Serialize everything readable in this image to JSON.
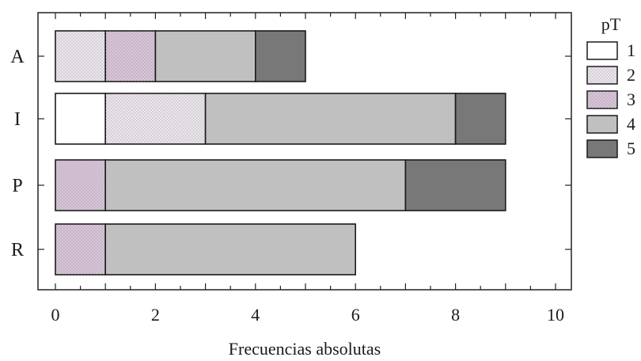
{
  "chart_data": {
    "type": "bar",
    "orientation": "horizontal",
    "stacked": true,
    "categories": [
      "A",
      "I",
      "P",
      "R"
    ],
    "xlabel": "Frecuencias absolutas",
    "ylabel": "",
    "xlim": [
      0,
      10
    ],
    "xticks": [
      0,
      2,
      4,
      6,
      8,
      10
    ],
    "grid": false,
    "legend_title": "pT",
    "legend_position": "right",
    "series": [
      {
        "name": "1",
        "color": "#ffffff",
        "pattern": "none",
        "values": [
          0,
          1,
          0,
          0
        ]
      },
      {
        "name": "2",
        "color": "#ebe6ec",
        "pattern": "dots",
        "values": [
          1,
          2,
          0,
          0
        ]
      },
      {
        "name": "3",
        "color": "#d8c6d8",
        "pattern": "dots",
        "values": [
          1,
          0,
          1,
          1
        ]
      },
      {
        "name": "4",
        "color": "#c0c0c0",
        "pattern": "none",
        "values": [
          2,
          5,
          6,
          5
        ]
      },
      {
        "name": "5",
        "color": "#787878",
        "pattern": "none",
        "values": [
          1,
          1,
          2,
          0
        ]
      }
    ]
  }
}
